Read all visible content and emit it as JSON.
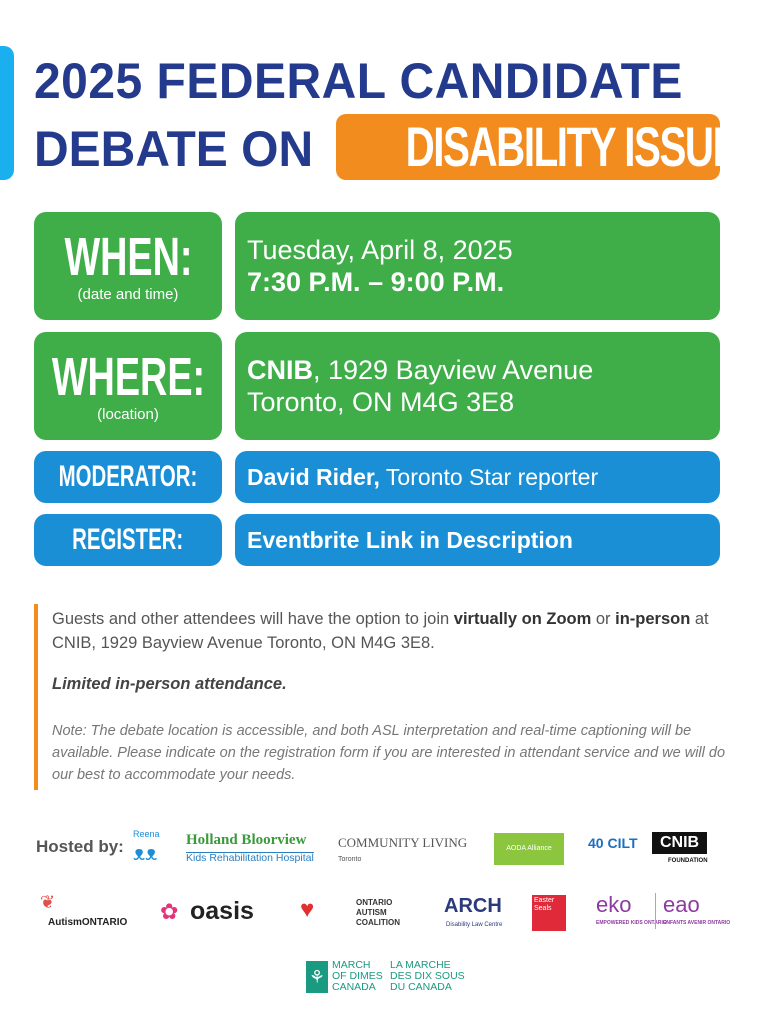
{
  "title": {
    "line1": "2025 FEDERAL CANDIDATE",
    "line2": "DEBATE ON",
    "highlight": "DISABILITY ISSUES"
  },
  "colors": {
    "navy": "#243a8c",
    "orange": "#f28c1e",
    "green": "#3fae49",
    "blue": "#1a8fd6",
    "accent": "#1ab0ef"
  },
  "when": {
    "label": "WHEN:",
    "sub": "(date and time)",
    "date": "Tuesday, April 8, 2025",
    "time": "7:30 P.M. – 9:00 P.M."
  },
  "where": {
    "label": "WHERE:",
    "sub": "(location)",
    "org": "CNIB",
    "addr1": ", 1929 Bayview Avenue",
    "addr2": "Toronto, ON M4G 3E8"
  },
  "moderator": {
    "label": "MODERATOR:",
    "name": "David Rider,",
    "role": " Toronto Star reporter"
  },
  "register": {
    "label": "REGISTER:",
    "value": "Eventbrite Link in Description"
  },
  "info": {
    "p1a": "Guests and other attendees will have the option to join ",
    "p1b": "virtually on Zoom",
    "p1c": " or ",
    "p1d": "in-person",
    "p1e": " at CNIB, 1929 Bayview Avenue Toronto, ON M4G 3E8.",
    "limited": "Limited in-person attendance.",
    "note": "Note: The debate location is accessible, and both ASL interpretation and real-time captioning will be available. Please indicate on the registration form if you are interested in attendant service and we will do our best to accommodate your needs."
  },
  "hosted_by": "Hosted by:",
  "logos": [
    "Reena",
    "Holland Bloorview",
    "Kids Rehabilitation Hospital",
    "COMMUNITY LIVING",
    "Toronto",
    "AODA Alliance",
    "40 CILT",
    "CNIB",
    "FOUNDATION",
    "AutismONTARIO",
    "oasis",
    "ONTARIO AUTISM COALITION",
    "ARCH",
    "Disability Law Centre",
    "Easter Seals",
    "eko",
    "EMPOWERED KIDS ONTARIO",
    "eao",
    "ENFANTS AVENIR ONTARIO",
    "MARCH OF DIMES CANADA",
    "LA MARCHE DES DIX SOUS DU CANADA"
  ]
}
